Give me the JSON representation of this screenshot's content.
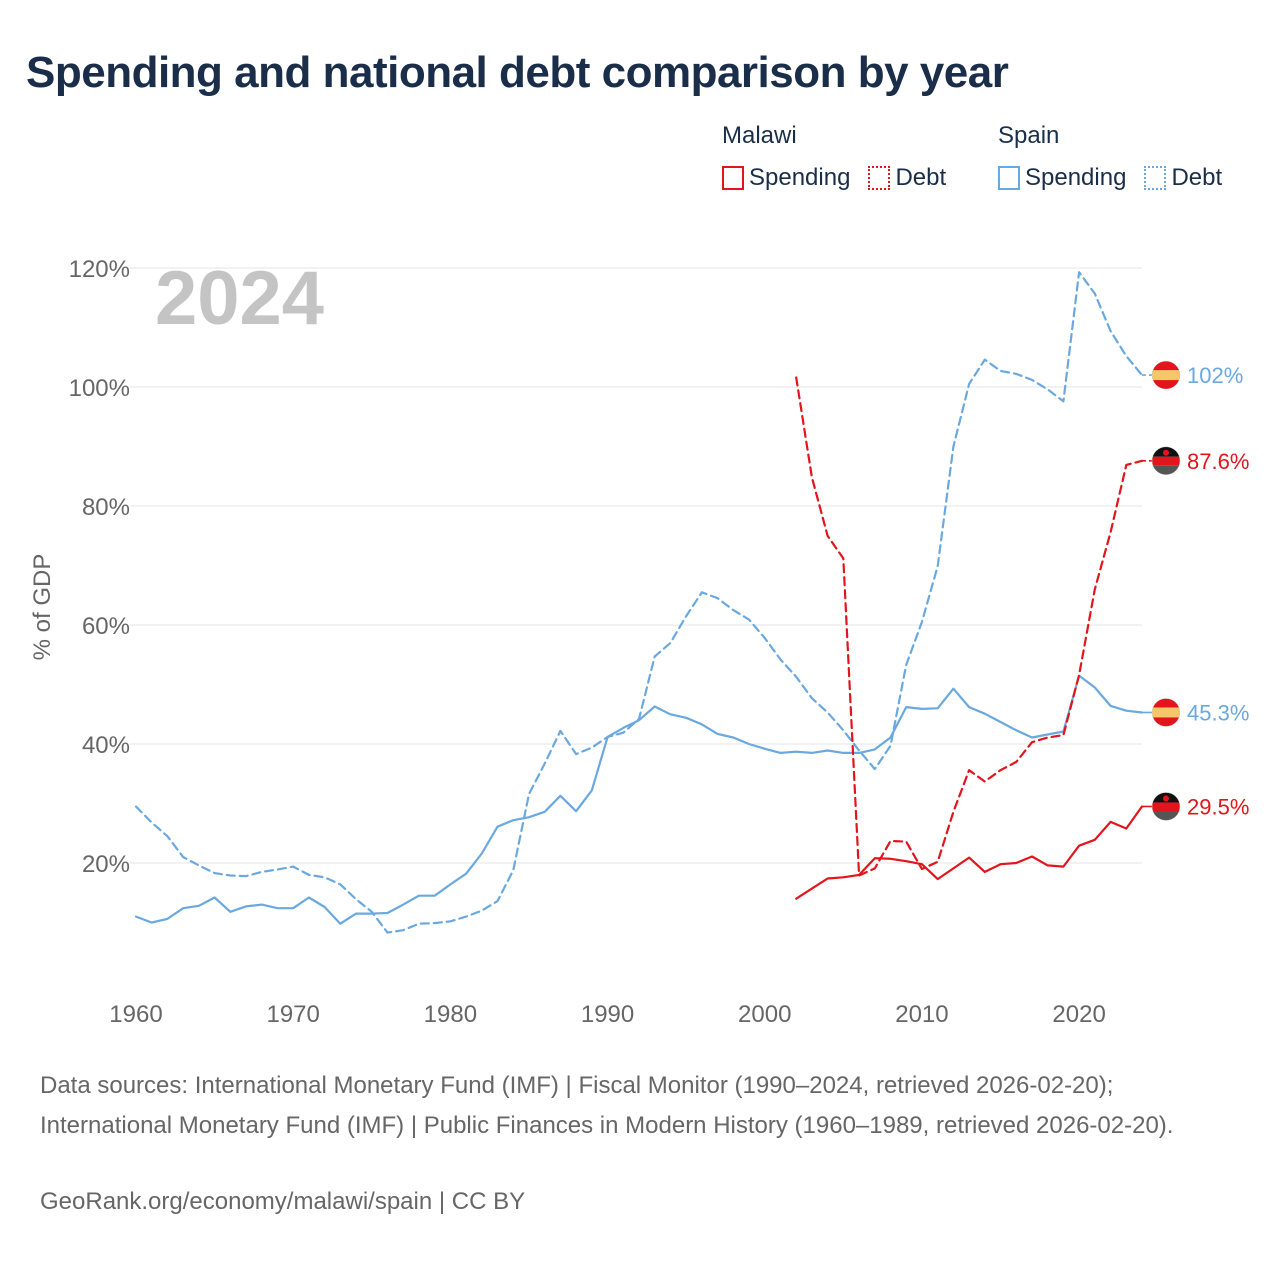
{
  "title": "Spending and national debt comparison by year",
  "legend": {
    "groups": [
      {
        "country": "Malawi",
        "items": [
          {
            "label": "Spending",
            "style": "solid"
          },
          {
            "label": "Debt",
            "style": "dotted"
          }
        ]
      },
      {
        "country": "Spain",
        "items": [
          {
            "label": "Spending",
            "style": "solid"
          },
          {
            "label": "Debt",
            "style": "dotted"
          }
        ]
      }
    ]
  },
  "colors": {
    "malawi": "#e3141c",
    "spain": "#6aa8e0",
    "grid": "#e6e6e6",
    "axis_text": "#666666",
    "year_watermark": "#c4c4c4",
    "title": "#1a2e4a"
  },
  "icons": {
    "malawi": "malawi-flag-icon",
    "spain": "spain-flag-icon"
  },
  "chart_data": {
    "type": "line",
    "ylabel": "% of GDP",
    "xlabel": "",
    "year_label": "2024",
    "xlim": [
      1960,
      2024
    ],
    "ylim": [
      0,
      120
    ],
    "x_ticks": [
      "1960",
      "1970",
      "1980",
      "1990",
      "2000",
      "2010",
      "2020"
    ],
    "y_ticks": [
      "20%",
      "40%",
      "60%",
      "80%",
      "100%",
      "120%"
    ],
    "grid": true,
    "series": [
      {
        "name": "Spain Spending",
        "country": "spain",
        "style": "solid",
        "end_label": "45.3%",
        "x": [
          1960,
          1961,
          1962,
          1963,
          1964,
          1965,
          1966,
          1967,
          1968,
          1969,
          1970,
          1971,
          1972,
          1973,
          1974,
          1975,
          1976,
          1977,
          1978,
          1979,
          1980,
          1981,
          1982,
          1983,
          1984,
          1985,
          1986,
          1987,
          1988,
          1989,
          1990,
          1991,
          1992,
          1993,
          1994,
          1995,
          1996,
          1997,
          1998,
          1999,
          2000,
          2001,
          2002,
          2003,
          2004,
          2005,
          2006,
          2007,
          2008,
          2009,
          2010,
          2011,
          2012,
          2013,
          2014,
          2015,
          2016,
          2017,
          2018,
          2019,
          2020,
          2021,
          2022,
          2023,
          2024
        ],
        "y": [
          11,
          10,
          10.6,
          12.4,
          12.8,
          14.2,
          11.8,
          12.7,
          13,
          12.4,
          12.4,
          14.2,
          12.6,
          9.8,
          11.5,
          11.5,
          11.6,
          13,
          14.5,
          14.5,
          16.4,
          18.2,
          21.6,
          26.1,
          27.2,
          27.7,
          28.6,
          31.3,
          28.7,
          32.2,
          41.2,
          42.7,
          44,
          46.3,
          45,
          44.4,
          43.3,
          41.7,
          41.1,
          40,
          39.2,
          38.5,
          38.7,
          38.5,
          38.9,
          38.5,
          38.5,
          39.1,
          41.1,
          46.2,
          45.9,
          46,
          49.3,
          46.2,
          45.1,
          43.7,
          42.3,
          41.1,
          41.6,
          42.1,
          51.5,
          49.5,
          46.4,
          45.6,
          45.3
        ]
      },
      {
        "name": "Spain Debt",
        "country": "spain",
        "style": "dashed",
        "end_label": "102%",
        "x": [
          1960,
          1961,
          1962,
          1963,
          1964,
          1965,
          1966,
          1967,
          1968,
          1969,
          1970,
          1971,
          1972,
          1973,
          1974,
          1975,
          1976,
          1977,
          1978,
          1979,
          1980,
          1981,
          1982,
          1983,
          1984,
          1985,
          1986,
          1987,
          1988,
          1989,
          1990,
          1991,
          1992,
          1993,
          1994,
          1995,
          1996,
          1997,
          1998,
          1999,
          2000,
          2001,
          2002,
          2003,
          2004,
          2005,
          2006,
          2007,
          2008,
          2009,
          2010,
          2011,
          2012,
          2013,
          2014,
          2015,
          2016,
          2017,
          2018,
          2019,
          2020,
          2021,
          2022,
          2023,
          2024
        ],
        "y": [
          29.5,
          26.8,
          24.5,
          21,
          19.6,
          18.3,
          17.9,
          17.8,
          18.5,
          18.9,
          19.4,
          18,
          17.6,
          16.4,
          13.9,
          11.8,
          8.3,
          8.7,
          9.8,
          9.9,
          10.2,
          11,
          12,
          13.6,
          18.8,
          31.6,
          36.7,
          42.2,
          38.3,
          39.4,
          41.2,
          41.9,
          44.2,
          54.7,
          57,
          61.5,
          65.5,
          64.5,
          62.5,
          60.9,
          57.8,
          54.2,
          51.3,
          47.7,
          45.3,
          42.3,
          38.9,
          35.8,
          39.7,
          53.3,
          60.5,
          69.9,
          90,
          100.5,
          104.6,
          102.7,
          102.2,
          101.2,
          99.6,
          97.6,
          119.3,
          115.7,
          109.4,
          105.2,
          102
        ]
      },
      {
        "name": "Malawi Spending",
        "country": "malawi",
        "style": "solid",
        "end_label": "29.5%",
        "x": [
          2002,
          2003,
          2004,
          2005,
          2006,
          2007,
          2008,
          2009,
          2010,
          2011,
          2012,
          2013,
          2014,
          2015,
          2016,
          2017,
          2018,
          2019,
          2020,
          2021,
          2022,
          2023,
          2024
        ],
        "y": [
          14,
          15.7,
          17.4,
          17.6,
          18,
          20.8,
          20.7,
          20.3,
          19.8,
          17.3,
          19.1,
          20.9,
          18.5,
          19.8,
          20,
          21.1,
          19.6,
          19.4,
          22.9,
          23.9,
          26.9,
          25.8,
          29.5
        ]
      },
      {
        "name": "Malawi Debt",
        "country": "malawi",
        "style": "dashed",
        "end_label": "87.6%",
        "x": [
          2002,
          2003,
          2004,
          2005,
          2006,
          2007,
          2008,
          2009,
          2010,
          2011,
          2012,
          2013,
          2014,
          2015,
          2016,
          2017,
          2018,
          2019,
          2020,
          2021,
          2022,
          2023,
          2024
        ],
        "y": [
          101.6,
          84.8,
          75,
          71.2,
          17.9,
          19.1,
          23.7,
          23.6,
          19,
          20.2,
          28.6,
          35.6,
          33.7,
          35.6,
          37,
          40.3,
          41.1,
          41.5,
          51.6,
          66,
          75.6,
          86.9,
          87.6
        ]
      }
    ]
  },
  "sources": "Data sources: International Monetary Fund (IMF) | Fiscal Monitor (1990–2024, retrieved 2026-02-20); International Monetary Fund (IMF) | Public Finances in Modern History (1960–1989, retrieved 2026-02-20).",
  "credit": "GeoRank.org/economy/malawi/spain | CC BY"
}
